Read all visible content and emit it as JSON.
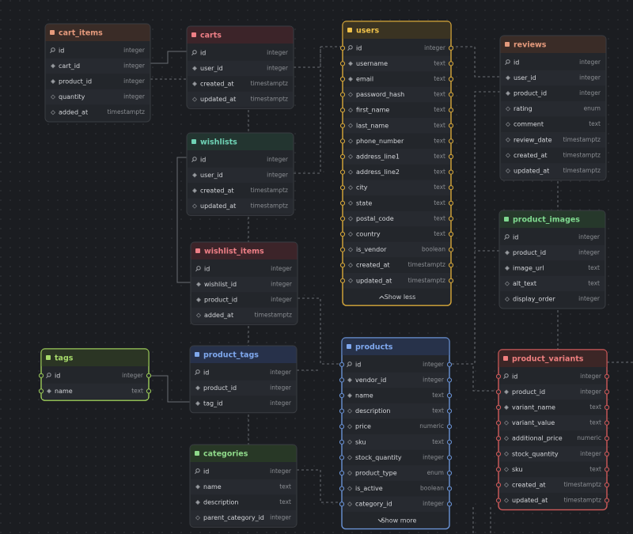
{
  "tables": [
    {
      "name": "cart_items",
      "columns": [
        {
          "name": "id",
          "type": "integer"
        },
        {
          "name": "cart_id",
          "type": "integer"
        },
        {
          "name": "product_id",
          "type": "integer"
        },
        {
          "name": "quantity",
          "type": "integer"
        },
        {
          "name": "added_at",
          "type": "timestamptz"
        }
      ]
    },
    {
      "name": "carts",
      "columns": [
        {
          "name": "id",
          "type": "integer"
        },
        {
          "name": "user_id",
          "type": "integer"
        },
        {
          "name": "created_at",
          "type": "timestamptz"
        },
        {
          "name": "updated_at",
          "type": "timestamptz"
        }
      ]
    },
    {
      "name": "users",
      "columns": [
        {
          "name": "id",
          "type": "integer"
        },
        {
          "name": "username",
          "type": "text"
        },
        {
          "name": "email",
          "type": "text"
        },
        {
          "name": "password_hash",
          "type": "text"
        },
        {
          "name": "first_name",
          "type": "text"
        },
        {
          "name": "last_name",
          "type": "text"
        },
        {
          "name": "phone_number",
          "type": "text"
        },
        {
          "name": "address_line1",
          "type": "text"
        },
        {
          "name": "address_line2",
          "type": "text"
        },
        {
          "name": "city",
          "type": "text"
        },
        {
          "name": "state",
          "type": "text"
        },
        {
          "name": "postal_code",
          "type": "text"
        },
        {
          "name": "country",
          "type": "text"
        },
        {
          "name": "is_vendor",
          "type": "boolean"
        },
        {
          "name": "created_at",
          "type": "timestamptz"
        },
        {
          "name": "updated_at",
          "type": "timestamptz"
        }
      ],
      "footer": "Show less"
    },
    {
      "name": "reviews",
      "columns": [
        {
          "name": "id",
          "type": "integer"
        },
        {
          "name": "user_id",
          "type": "integer"
        },
        {
          "name": "product_id",
          "type": "integer"
        },
        {
          "name": "rating",
          "type": "enum"
        },
        {
          "name": "comment",
          "type": "text"
        },
        {
          "name": "review_date",
          "type": "timestamptz"
        },
        {
          "name": "created_at",
          "type": "timestamptz"
        },
        {
          "name": "updated_at",
          "type": "timestamptz"
        }
      ]
    },
    {
      "name": "wishlists",
      "columns": [
        {
          "name": "id",
          "type": "integer"
        },
        {
          "name": "user_id",
          "type": "integer"
        },
        {
          "name": "created_at",
          "type": "timestamptz"
        },
        {
          "name": "updated_at",
          "type": "timestamptz"
        }
      ]
    },
    {
      "name": "wishlist_items",
      "columns": [
        {
          "name": "id",
          "type": "integer"
        },
        {
          "name": "wishlist_id",
          "type": "integer"
        },
        {
          "name": "product_id",
          "type": "integer"
        },
        {
          "name": "added_at",
          "type": "timestamptz"
        }
      ]
    },
    {
      "name": "product_images",
      "columns": [
        {
          "name": "id",
          "type": "integer"
        },
        {
          "name": "product_id",
          "type": "integer"
        },
        {
          "name": "image_url",
          "type": "text"
        },
        {
          "name": "alt_text",
          "type": "text"
        },
        {
          "name": "display_order",
          "type": "integer"
        }
      ]
    },
    {
      "name": "tags",
      "columns": [
        {
          "name": "id",
          "type": "integer"
        },
        {
          "name": "name",
          "type": "text"
        }
      ]
    },
    {
      "name": "product_tags",
      "columns": [
        {
          "name": "id",
          "type": "integer"
        },
        {
          "name": "product_id",
          "type": "integer"
        },
        {
          "name": "tag_id",
          "type": "integer"
        }
      ]
    },
    {
      "name": "products",
      "columns": [
        {
          "name": "id",
          "type": "integer"
        },
        {
          "name": "vendor_id",
          "type": "integer"
        },
        {
          "name": "name",
          "type": "text"
        },
        {
          "name": "description",
          "type": "text"
        },
        {
          "name": "price",
          "type": "numeric"
        },
        {
          "name": "sku",
          "type": "text"
        },
        {
          "name": "stock_quantity",
          "type": "integer"
        },
        {
          "name": "product_type",
          "type": "enum"
        },
        {
          "name": "is_active",
          "type": "boolean"
        },
        {
          "name": "category_id",
          "type": "integer"
        }
      ],
      "footer": "Show more"
    },
    {
      "name": "product_variants",
      "columns": [
        {
          "name": "id",
          "type": "integer"
        },
        {
          "name": "product_id",
          "type": "integer"
        },
        {
          "name": "variant_name",
          "type": "text"
        },
        {
          "name": "variant_value",
          "type": "text"
        },
        {
          "name": "additional_price",
          "type": "numeric"
        },
        {
          "name": "stock_quantity",
          "type": "integer"
        },
        {
          "name": "sku",
          "type": "text"
        },
        {
          "name": "created_at",
          "type": "timestamptz"
        },
        {
          "name": "updated_at",
          "type": "timestamptz"
        }
      ]
    },
    {
      "name": "categories",
      "columns": [
        {
          "name": "id",
          "type": "integer"
        },
        {
          "name": "name",
          "type": "text"
        },
        {
          "name": "description",
          "type": "text"
        },
        {
          "name": "parent_category_id",
          "type": "integer"
        }
      ]
    }
  ]
}
